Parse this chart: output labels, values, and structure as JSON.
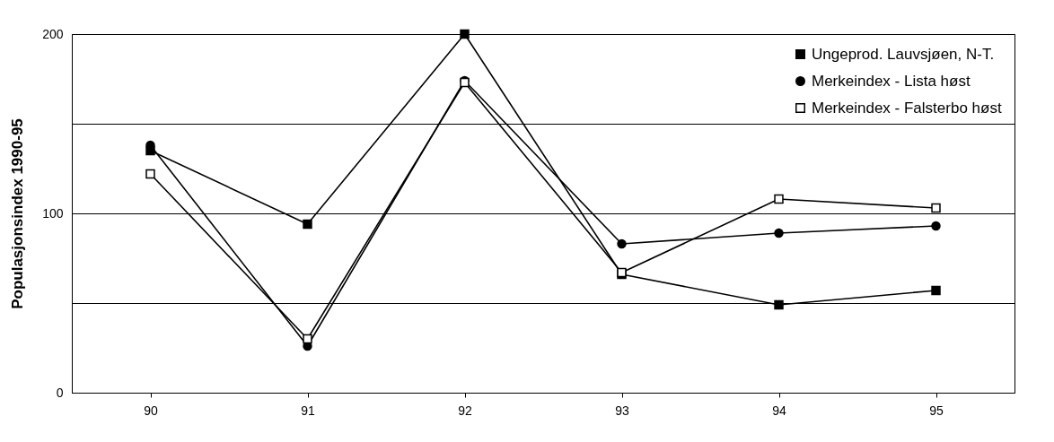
{
  "chart_data": {
    "type": "line",
    "ylabel": "Populasjonsindex 1990-95",
    "categories": [
      "90",
      "91",
      "92",
      "93",
      "94",
      "95"
    ],
    "ylim": [
      0,
      200
    ],
    "yticks": [
      0,
      {
        "value": 50,
        "label": null
      },
      100,
      {
        "value": 150,
        "label": null
      },
      200
    ],
    "grid": "y",
    "legend": "top right",
    "line_style": "solid",
    "series": [
      {
        "name": "Ungeprod. Lauvsjøen, N-T.",
        "color": "#000000",
        "marker": "square",
        "values": [
          135,
          94,
          200,
          66,
          49,
          57
        ]
      },
      {
        "name": "Merkeindex - Lista høst",
        "color": "#000000",
        "marker": "circle",
        "values": [
          138,
          26,
          174,
          83,
          89,
          93
        ]
      },
      {
        "name": "Merkeindex - Falsterbo høst",
        "color": "#000000",
        "marker": "square",
        "values": [
          122,
          30,
          173,
          67,
          108,
          103
        ]
      }
    ]
  }
}
